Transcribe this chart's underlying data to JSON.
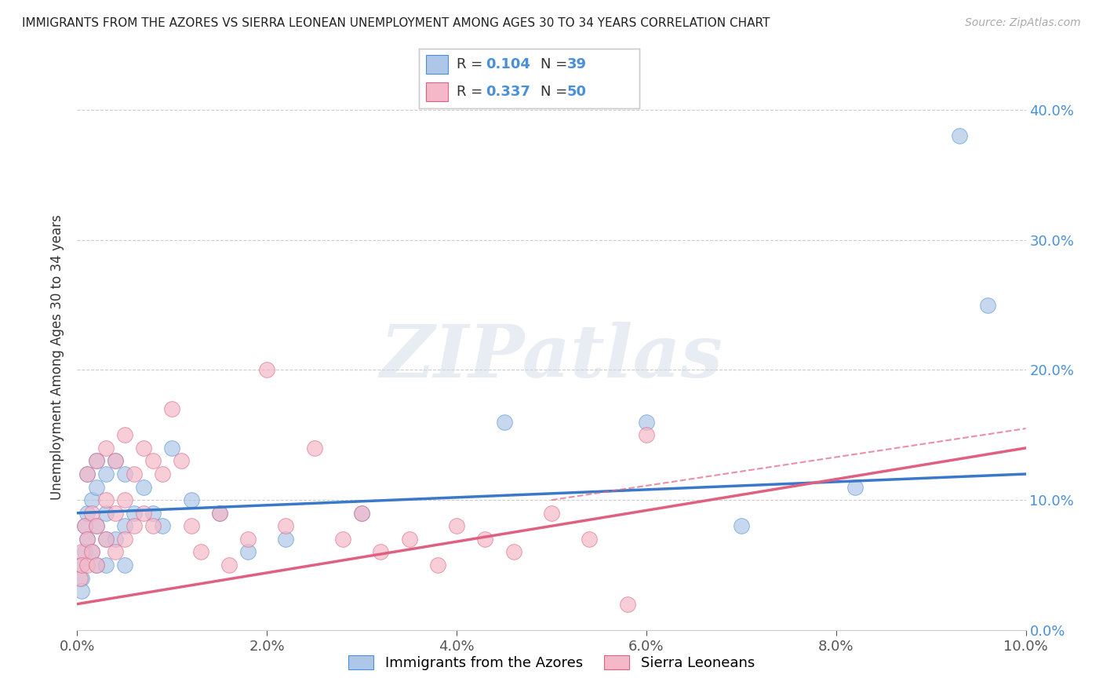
{
  "title": "IMMIGRANTS FROM THE AZORES VS SIERRA LEONEAN UNEMPLOYMENT AMONG AGES 30 TO 34 YEARS CORRELATION CHART",
  "source": "Source: ZipAtlas.com",
  "ylabel": "Unemployment Among Ages 30 to 34 years",
  "legend_label1": "Immigrants from the Azores",
  "legend_label2": "Sierra Leoneans",
  "R1": 0.104,
  "N1": 39,
  "R2": 0.337,
  "N2": 50,
  "color_blue": "#aec6e8",
  "color_pink": "#f4b8c8",
  "color_blue_dark": "#4a90d9",
  "color_pink_dark": "#e06080",
  "line_blue": "#3a78c9",
  "line_pink": "#e06080",
  "xlim": [
    0.0,
    0.1
  ],
  "ylim": [
    0.0,
    0.42
  ],
  "xticks": [
    0.0,
    0.02,
    0.04,
    0.06,
    0.08,
    0.1
  ],
  "yticks": [
    0.0,
    0.1,
    0.2,
    0.3,
    0.4
  ],
  "watermark": "ZIPatlas",
  "blue_x": [
    0.0005,
    0.0005,
    0.0005,
    0.0008,
    0.0008,
    0.001,
    0.001,
    0.001,
    0.0015,
    0.0015,
    0.002,
    0.002,
    0.002,
    0.002,
    0.003,
    0.003,
    0.003,
    0.003,
    0.004,
    0.004,
    0.005,
    0.005,
    0.005,
    0.006,
    0.007,
    0.008,
    0.009,
    0.01,
    0.012,
    0.015,
    0.018,
    0.022,
    0.03,
    0.045,
    0.06,
    0.07,
    0.082,
    0.093,
    0.096
  ],
  "blue_y": [
    0.05,
    0.04,
    0.03,
    0.08,
    0.06,
    0.12,
    0.09,
    0.07,
    0.1,
    0.06,
    0.13,
    0.11,
    0.08,
    0.05,
    0.12,
    0.09,
    0.07,
    0.05,
    0.13,
    0.07,
    0.12,
    0.08,
    0.05,
    0.09,
    0.11,
    0.09,
    0.08,
    0.14,
    0.1,
    0.09,
    0.06,
    0.07,
    0.09,
    0.16,
    0.16,
    0.08,
    0.11,
    0.38,
    0.25
  ],
  "pink_x": [
    0.0003,
    0.0005,
    0.0005,
    0.0008,
    0.001,
    0.001,
    0.001,
    0.0015,
    0.0015,
    0.002,
    0.002,
    0.002,
    0.003,
    0.003,
    0.003,
    0.004,
    0.004,
    0.004,
    0.005,
    0.005,
    0.005,
    0.006,
    0.006,
    0.007,
    0.007,
    0.008,
    0.008,
    0.009,
    0.01,
    0.011,
    0.012,
    0.013,
    0.015,
    0.016,
    0.018,
    0.02,
    0.022,
    0.025,
    0.028,
    0.03,
    0.032,
    0.035,
    0.038,
    0.04,
    0.043,
    0.046,
    0.05,
    0.054,
    0.058,
    0.06
  ],
  "pink_y": [
    0.04,
    0.06,
    0.05,
    0.08,
    0.12,
    0.07,
    0.05,
    0.09,
    0.06,
    0.13,
    0.08,
    0.05,
    0.14,
    0.1,
    0.07,
    0.13,
    0.09,
    0.06,
    0.15,
    0.1,
    0.07,
    0.12,
    0.08,
    0.14,
    0.09,
    0.13,
    0.08,
    0.12,
    0.17,
    0.13,
    0.08,
    0.06,
    0.09,
    0.05,
    0.07,
    0.2,
    0.08,
    0.14,
    0.07,
    0.09,
    0.06,
    0.07,
    0.05,
    0.08,
    0.07,
    0.06,
    0.09,
    0.07,
    0.02,
    0.15
  ],
  "blue_line_x0": 0.0,
  "blue_line_x1": 0.1,
  "blue_line_y0": 0.09,
  "blue_line_y1": 0.12,
  "pink_line_x0": 0.0,
  "pink_line_x1": 0.1,
  "pink_line_y0": 0.02,
  "pink_line_y1": 0.14
}
